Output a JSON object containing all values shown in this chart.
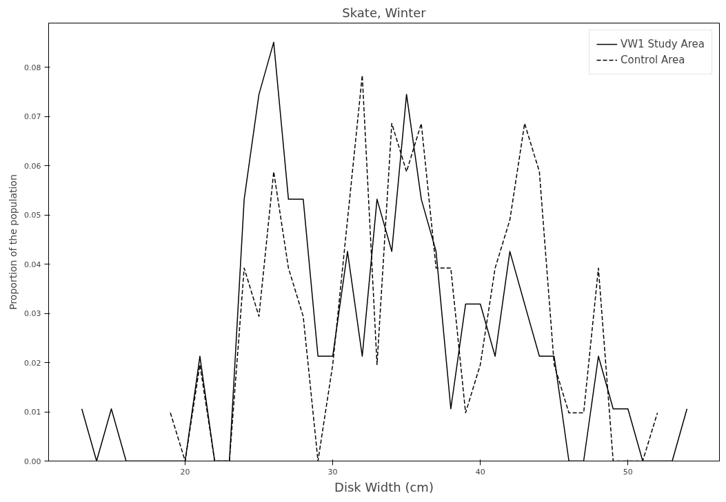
{
  "chart_data": {
    "type": "line",
    "title": "Skate, Winter",
    "xlabel": "Disk Width (cm)",
    "ylabel": "Proportion of the population",
    "xlim": [
      10.75,
      56.2
    ],
    "ylim": [
      0,
      0.089
    ],
    "xticks": [
      20,
      30,
      40,
      50
    ],
    "yticks": [
      {
        "value": 0,
        "label": "0.00"
      },
      {
        "value": 0.01,
        "label": "0.01"
      },
      {
        "value": 0.02,
        "label": "0.02"
      },
      {
        "value": 0.03,
        "label": "0.03"
      },
      {
        "value": 0.04,
        "label": "0.04"
      },
      {
        "value": 0.05,
        "label": "0.05"
      },
      {
        "value": 0.06,
        "label": "0.06"
      },
      {
        "value": 0.07,
        "label": "0.07"
      },
      {
        "value": 0.08,
        "label": "0.08"
      }
    ],
    "grid": false,
    "legend": "top right",
    "series": [
      {
        "name": "VW1 Study Area",
        "color": "#000000",
        "line_style": "solid",
        "x": [
          13,
          14,
          15,
          16,
          17,
          18,
          19,
          20,
          21,
          22,
          23,
          24,
          25,
          26,
          27,
          28,
          29,
          30,
          31,
          32,
          33,
          34,
          35,
          36,
          37,
          38,
          39,
          40,
          41,
          42,
          43,
          44,
          45,
          46,
          47,
          48,
          49,
          50,
          51,
          52,
          53,
          54
        ],
        "values": [
          0.0106,
          0,
          0.0106,
          0,
          0,
          0,
          0,
          0,
          0.0213,
          0,
          0,
          0.0532,
          0.0745,
          0.0851,
          0.0532,
          0.0532,
          0.0213,
          0.0213,
          0.0426,
          0.0213,
          0.0532,
          0.0426,
          0.0745,
          0.0532,
          0.0426,
          0.0106,
          0.0319,
          0.0319,
          0.0213,
          0.0426,
          0.0319,
          0.0213,
          0.0213,
          0,
          0,
          0.0213,
          0.0106,
          0.0106,
          0,
          0,
          0,
          0.0106
        ]
      },
      {
        "name": "Control Area",
        "color": "#000000",
        "line_style": "dashed",
        "x": [
          19,
          20,
          21,
          22,
          23,
          24,
          25,
          26,
          27,
          28,
          29,
          30,
          31,
          32,
          33,
          34,
          35,
          36,
          37,
          38,
          39,
          40,
          41,
          42,
          43,
          44,
          45,
          46,
          47,
          48,
          49,
          50,
          51,
          52
        ],
        "values": [
          0.0098,
          0,
          0.0196,
          0,
          0,
          0.0392,
          0.0294,
          0.0588,
          0.0392,
          0.0294,
          0,
          0.0196,
          0.049,
          0.0784,
          0.0196,
          0.0686,
          0.0588,
          0.0686,
          0.0392,
          0.0392,
          0.0098,
          0.0196,
          0.0392,
          0.049,
          0.0686,
          0.0588,
          0.0196,
          0.0098,
          0.0098,
          0.0392,
          0,
          0,
          0,
          0.0098
        ]
      }
    ]
  }
}
